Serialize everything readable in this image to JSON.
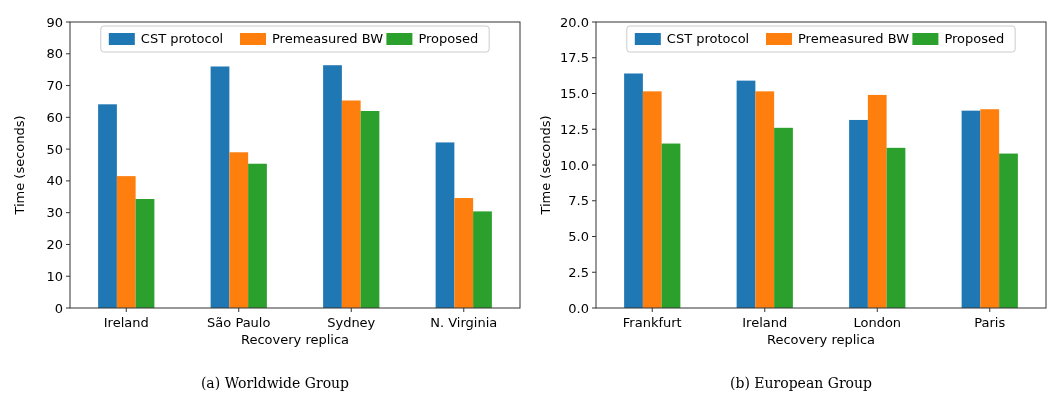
{
  "chart_data": [
    {
      "type": "bar",
      "title": "(a) Worldwide Group",
      "xlabel": "Recovery replica",
      "ylabel": "Time (seconds)",
      "categories": [
        "Ireland",
        "São Paulo",
        "Sydney",
        "N. Virginia"
      ],
      "series": [
        {
          "name": "CST protocol",
          "color": "#1f77b4",
          "values": [
            64.1,
            76.0,
            76.4,
            52.1
          ]
        },
        {
          "name": "Premeasured BW",
          "color": "#ff7f0e",
          "values": [
            41.5,
            49.0,
            65.3,
            34.6
          ]
        },
        {
          "name": "Proposed",
          "color": "#2ca02c",
          "values": [
            34.3,
            45.4,
            62.0,
            30.4
          ]
        }
      ],
      "ylim": [
        0,
        90
      ],
      "yticks": [
        0,
        10,
        20,
        30,
        40,
        50,
        60,
        70,
        80,
        90
      ],
      "legend": "top",
      "grid": false
    },
    {
      "type": "bar",
      "title": "(b) European Group",
      "xlabel": "Recovery replica",
      "ylabel": "Time (seconds)",
      "categories": [
        "Frankfurt",
        "Ireland",
        "London",
        "Paris"
      ],
      "series": [
        {
          "name": "CST protocol",
          "color": "#1f77b4",
          "values": [
            16.4,
            15.9,
            13.15,
            13.8
          ]
        },
        {
          "name": "Premeasured BW",
          "color": "#ff7f0e",
          "values": [
            15.15,
            15.15,
            14.9,
            13.9
          ]
        },
        {
          "name": "Proposed",
          "color": "#2ca02c",
          "values": [
            11.5,
            12.6,
            11.2,
            10.8
          ]
        }
      ],
      "ylim": [
        0,
        20
      ],
      "yticks": [
        {
          "value": 0,
          "label": "0.0"
        },
        {
          "value": 2.5,
          "label": "2.5"
        },
        {
          "value": 5,
          "label": "5.0"
        },
        {
          "value": 7.5,
          "label": "7.5"
        },
        {
          "value": 10,
          "label": "10.0"
        },
        {
          "value": 12.5,
          "label": "12.5"
        },
        {
          "value": 15,
          "label": "15.0"
        },
        {
          "value": 17.5,
          "label": "17.5"
        },
        {
          "value": 20,
          "label": "20.0"
        }
      ],
      "legend": "top",
      "grid": false
    }
  ]
}
